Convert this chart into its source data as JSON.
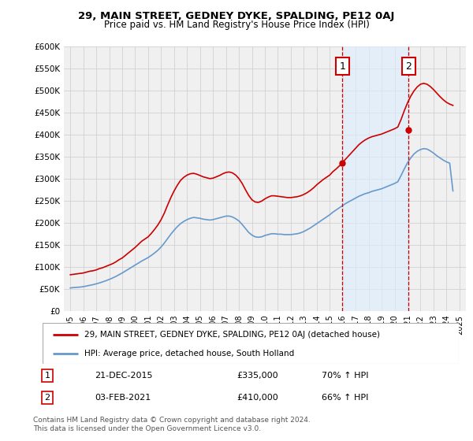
{
  "title": "29, MAIN STREET, GEDNEY DYKE, SPALDING, PE12 0AJ",
  "subtitle": "Price paid vs. HM Land Registry's House Price Index (HPI)",
  "ylim": [
    0,
    600000
  ],
  "yticks": [
    0,
    50000,
    100000,
    150000,
    200000,
    250000,
    300000,
    350000,
    400000,
    450000,
    500000,
    550000,
    600000
  ],
  "ytick_labels": [
    "£0",
    "£50K",
    "£100K",
    "£150K",
    "£200K",
    "£250K",
    "£300K",
    "£350K",
    "£400K",
    "£450K",
    "£500K",
    "£550K",
    "£600K"
  ],
  "red_line_color": "#cc0000",
  "blue_line_color": "#6699cc",
  "vline_color": "#cc0000",
  "plot_bg_color": "#f0f0f0",
  "shade_color": "#ddeeff",
  "transaction1": {
    "label": "1",
    "date": "21-DEC-2015",
    "price": "£335,000",
    "hpi": "70% ↑ HPI"
  },
  "transaction2": {
    "label": "2",
    "date": "03-FEB-2021",
    "price": "£410,000",
    "hpi": "66% ↑ HPI"
  },
  "legend1": "29, MAIN STREET, GEDNEY DYKE, SPALDING, PE12 0AJ (detached house)",
  "legend2": "HPI: Average price, detached house, South Holland",
  "footnote": "Contains HM Land Registry data © Crown copyright and database right 2024.\nThis data is licensed under the Open Government Licence v3.0.",
  "red_data": {
    "years": [
      1995.0,
      1995.25,
      1995.5,
      1995.75,
      1996.0,
      1996.25,
      1996.5,
      1996.75,
      1997.0,
      1997.25,
      1997.5,
      1997.75,
      1998.0,
      1998.25,
      1998.5,
      1998.75,
      1999.0,
      1999.25,
      1999.5,
      1999.75,
      2000.0,
      2000.25,
      2000.5,
      2000.75,
      2001.0,
      2001.25,
      2001.5,
      2001.75,
      2002.0,
      2002.25,
      2002.5,
      2002.75,
      2003.0,
      2003.25,
      2003.5,
      2003.75,
      2004.0,
      2004.25,
      2004.5,
      2004.75,
      2005.0,
      2005.25,
      2005.5,
      2005.75,
      2006.0,
      2006.25,
      2006.5,
      2006.75,
      2007.0,
      2007.25,
      2007.5,
      2007.75,
      2008.0,
      2008.25,
      2008.5,
      2008.75,
      2009.0,
      2009.25,
      2009.5,
      2009.75,
      2010.0,
      2010.25,
      2010.5,
      2010.75,
      2011.0,
      2011.25,
      2011.5,
      2011.75,
      2012.0,
      2012.25,
      2012.5,
      2012.75,
      2013.0,
      2013.25,
      2013.5,
      2013.75,
      2014.0,
      2014.25,
      2014.5,
      2014.75,
      2015.0,
      2015.25,
      2015.5,
      2015.75,
      2016.0,
      2016.25,
      2016.5,
      2016.75,
      2017.0,
      2017.25,
      2017.5,
      2017.75,
      2018.0,
      2018.25,
      2018.5,
      2018.75,
      2019.0,
      2019.25,
      2019.5,
      2019.75,
      2020.0,
      2020.25,
      2020.5,
      2020.75,
      2021.0,
      2021.25,
      2021.5,
      2021.75,
      2022.0,
      2022.25,
      2022.5,
      2022.75,
      2023.0,
      2023.25,
      2023.5,
      2023.75,
      2024.0,
      2024.25,
      2024.5
    ],
    "values": [
      82000,
      83000,
      84000,
      85000,
      86000,
      88000,
      90000,
      91000,
      93000,
      96000,
      98000,
      101000,
      104000,
      107000,
      111000,
      116000,
      120000,
      126000,
      132000,
      138000,
      144000,
      151000,
      158000,
      163000,
      168000,
      176000,
      185000,
      195000,
      207000,
      222000,
      240000,
      257000,
      272000,
      285000,
      296000,
      303000,
      308000,
      311000,
      312000,
      310000,
      307000,
      304000,
      302000,
      300000,
      301000,
      304000,
      307000,
      311000,
      314000,
      315000,
      313000,
      308000,
      300000,
      289000,
      275000,
      262000,
      252000,
      247000,
      246000,
      249000,
      254000,
      258000,
      261000,
      261000,
      260000,
      259000,
      258000,
      257000,
      257000,
      258000,
      259000,
      261000,
      264000,
      268000,
      273000,
      279000,
      286000,
      292000,
      298000,
      303000,
      308000,
      316000,
      322000,
      329000,
      337000,
      345000,
      353000,
      361000,
      369000,
      377000,
      383000,
      388000,
      392000,
      395000,
      397000,
      399000,
      401000,
      404000,
      407000,
      410000,
      413000,
      417000,
      434000,
      454000,
      472000,
      487000,
      499000,
      508000,
      514000,
      516000,
      514000,
      509000,
      502000,
      494000,
      486000,
      479000,
      473000,
      469000,
      466000
    ]
  },
  "blue_data": {
    "years": [
      1995.0,
      1995.25,
      1995.5,
      1995.75,
      1996.0,
      1996.25,
      1996.5,
      1996.75,
      1997.0,
      1997.25,
      1997.5,
      1997.75,
      1998.0,
      1998.25,
      1998.5,
      1998.75,
      1999.0,
      1999.25,
      1999.5,
      1999.75,
      2000.0,
      2000.25,
      2000.5,
      2000.75,
      2001.0,
      2001.25,
      2001.5,
      2001.75,
      2002.0,
      2002.25,
      2002.5,
      2002.75,
      2003.0,
      2003.25,
      2003.5,
      2003.75,
      2004.0,
      2004.25,
      2004.5,
      2004.75,
      2005.0,
      2005.25,
      2005.5,
      2005.75,
      2006.0,
      2006.25,
      2006.5,
      2006.75,
      2007.0,
      2007.25,
      2007.5,
      2007.75,
      2008.0,
      2008.25,
      2008.5,
      2008.75,
      2009.0,
      2009.25,
      2009.5,
      2009.75,
      2010.0,
      2010.25,
      2010.5,
      2010.75,
      2011.0,
      2011.25,
      2011.5,
      2011.75,
      2012.0,
      2012.25,
      2012.5,
      2012.75,
      2013.0,
      2013.25,
      2013.5,
      2013.75,
      2014.0,
      2014.25,
      2014.5,
      2014.75,
      2015.0,
      2015.25,
      2015.5,
      2015.75,
      2016.0,
      2016.25,
      2016.5,
      2016.75,
      2017.0,
      2017.25,
      2017.5,
      2017.75,
      2018.0,
      2018.25,
      2018.5,
      2018.75,
      2019.0,
      2019.25,
      2019.5,
      2019.75,
      2020.0,
      2020.25,
      2020.5,
      2020.75,
      2021.0,
      2021.25,
      2021.5,
      2021.75,
      2022.0,
      2022.25,
      2022.5,
      2022.75,
      2023.0,
      2023.25,
      2023.5,
      2023.75,
      2024.0,
      2024.25,
      2024.5
    ],
    "values": [
      52000,
      53000,
      53500,
      54000,
      55000,
      56500,
      58000,
      59500,
      61500,
      63500,
      66000,
      68500,
      71500,
      74500,
      78000,
      82000,
      86000,
      90500,
      95000,
      99500,
      104000,
      108500,
      113000,
      117000,
      121000,
      126000,
      131500,
      137500,
      145000,
      154000,
      164000,
      174000,
      183000,
      191000,
      198000,
      203000,
      207000,
      210000,
      212000,
      211000,
      210000,
      208000,
      207000,
      206000,
      207000,
      209000,
      211000,
      213000,
      215000,
      215000,
      213000,
      209000,
      204000,
      196000,
      187000,
      178000,
      172000,
      168000,
      167000,
      168000,
      171000,
      173000,
      175000,
      175000,
      174000,
      174000,
      173000,
      173000,
      173000,
      174000,
      175000,
      177000,
      180000,
      184000,
      188000,
      193000,
      198000,
      203000,
      208000,
      213000,
      218000,
      224000,
      229000,
      234000,
      239000,
      244000,
      248000,
      252000,
      256000,
      260000,
      263000,
      266000,
      268000,
      271000,
      273000,
      275000,
      277000,
      280000,
      283000,
      286000,
      289000,
      293000,
      307000,
      322000,
      336000,
      347000,
      356000,
      362000,
      366000,
      368000,
      367000,
      363000,
      358000,
      352000,
      347000,
      342000,
      338000,
      335000,
      272000
    ]
  },
  "vline1_x": 2015.97,
  "vline2_x": 2021.08,
  "marker1_price": 335000,
  "marker2_price": 410000,
  "xlim": [
    1994.5,
    2025.5
  ],
  "xtick_start": 1995,
  "xtick_end": 2025
}
